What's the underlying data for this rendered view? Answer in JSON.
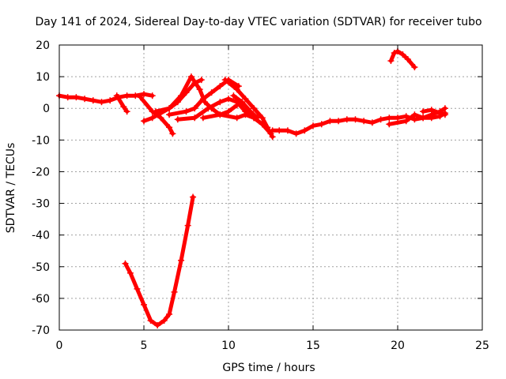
{
  "chart_data": {
    "type": "scatter",
    "title": "Day 141 of 2024, Sidereal Day-to-day VTEC variation (SDTVAR) for receiver tubo",
    "xlabel": "GPS time / hours",
    "ylabel": "SDTVAR / TECUs",
    "xlim": [
      0,
      25
    ],
    "ylim": [
      -70,
      20
    ],
    "xticks": [
      0,
      5,
      10,
      15,
      20,
      25
    ],
    "yticks": [
      -70,
      -60,
      -50,
      -40,
      -30,
      -20,
      -10,
      0,
      10,
      20
    ],
    "grid": true,
    "color": "#ff0000",
    "series": [
      {
        "name": "main",
        "points": [
          [
            0,
            4
          ],
          [
            0.5,
            3.5
          ],
          [
            1,
            3.5
          ],
          [
            1.5,
            3
          ],
          [
            2,
            2.5
          ],
          [
            2.5,
            2
          ],
          [
            3,
            2.5
          ],
          [
            3.5,
            3.5
          ],
          [
            4,
            4
          ],
          [
            4.5,
            4
          ],
          [
            5,
            4.5
          ],
          [
            5.5,
            4
          ]
        ]
      },
      {
        "name": "a",
        "points": [
          [
            3.4,
            4
          ],
          [
            3.8,
            0.5
          ],
          [
            4,
            -1
          ]
        ]
      },
      {
        "name": "b",
        "points": [
          [
            4.8,
            3.5
          ],
          [
            5.5,
            -1
          ],
          [
            6,
            -3
          ],
          [
            6.5,
            -6
          ],
          [
            6.7,
            -8
          ]
        ]
      },
      {
        "name": "c",
        "points": [
          [
            5,
            -4
          ],
          [
            5.5,
            -3
          ],
          [
            6.5,
            0
          ],
          [
            7.2,
            4
          ],
          [
            7.8,
            10
          ],
          [
            8.3,
            6
          ],
          [
            8.6,
            2
          ],
          [
            9,
            0
          ],
          [
            9.5,
            -2
          ],
          [
            10,
            -1
          ],
          [
            10.5,
            1
          ]
        ]
      },
      {
        "name": "d",
        "points": [
          [
            5.7,
            -1
          ],
          [
            6.5,
            0
          ],
          [
            7,
            2
          ],
          [
            7.5,
            5
          ],
          [
            8,
            8
          ],
          [
            8.4,
            9
          ]
        ]
      },
      {
        "name": "e",
        "points": [
          [
            6.5,
            -2
          ],
          [
            7.5,
            -1
          ],
          [
            8,
            0
          ],
          [
            8.5,
            3
          ],
          [
            9,
            5
          ],
          [
            9.5,
            7
          ],
          [
            10,
            9
          ],
          [
            10.6,
            7
          ]
        ]
      },
      {
        "name": "f",
        "points": [
          [
            7,
            -3.5
          ],
          [
            8,
            -3
          ],
          [
            8.8,
            0
          ],
          [
            9.5,
            2
          ],
          [
            10,
            3
          ],
          [
            10.5,
            2
          ],
          [
            11,
            -1
          ],
          [
            11.5,
            -3
          ],
          [
            12,
            -5
          ]
        ]
      },
      {
        "name": "g",
        "points": [
          [
            8.5,
            -3
          ],
          [
            9.5,
            -2
          ],
          [
            10.5,
            -3
          ],
          [
            11,
            -2
          ],
          [
            11.5,
            -3
          ],
          [
            12,
            -5
          ],
          [
            12.5,
            -8
          ]
        ]
      },
      {
        "name": "h",
        "points": [
          [
            9.8,
            9
          ],
          [
            10.5,
            6
          ],
          [
            11,
            3
          ],
          [
            11.5,
            0
          ],
          [
            12,
            -3
          ],
          [
            12.3,
            -6
          ],
          [
            12.6,
            -9
          ]
        ]
      },
      {
        "name": "k",
        "points": [
          [
            10.3,
            4
          ],
          [
            10.8,
            2
          ],
          [
            11.3,
            -1
          ],
          [
            11.7,
            -3
          ]
        ]
      },
      {
        "name": "tail",
        "points": [
          [
            12.6,
            -7
          ],
          [
            13,
            -7
          ],
          [
            13.5,
            -7
          ],
          [
            14,
            -8
          ],
          [
            14.5,
            -7
          ],
          [
            15,
            -5.5
          ],
          [
            15.5,
            -5
          ],
          [
            16,
            -4
          ],
          [
            16.5,
            -4
          ],
          [
            17,
            -3.5
          ],
          [
            17.5,
            -3.5
          ],
          [
            18,
            -4
          ],
          [
            18.5,
            -4.5
          ],
          [
            19,
            -3.5
          ],
          [
            19.5,
            -3
          ],
          [
            20,
            -3
          ],
          [
            20.5,
            -2.5
          ],
          [
            21,
            -3.5
          ],
          [
            21.5,
            -3
          ],
          [
            22,
            -3
          ],
          [
            22.5,
            -2.5
          ],
          [
            22.8,
            -1.5
          ]
        ]
      },
      {
        "name": "tail2",
        "points": [
          [
            19.5,
            -5
          ],
          [
            20.5,
            -4
          ],
          [
            21,
            -2
          ],
          [
            21.5,
            -3
          ],
          [
            22,
            -2
          ],
          [
            22.5,
            -1
          ],
          [
            22.8,
            0
          ]
        ]
      },
      {
        "name": "tail3",
        "points": [
          [
            21.5,
            -1
          ],
          [
            22,
            -0.5
          ],
          [
            22.5,
            -1.5
          ],
          [
            22.8,
            -2
          ]
        ]
      },
      {
        "name": "top",
        "points": [
          [
            19.6,
            15
          ],
          [
            19.8,
            17.5
          ],
          [
            20,
            18
          ],
          [
            20.3,
            17
          ],
          [
            20.6,
            15.5
          ],
          [
            21,
            13
          ]
        ]
      },
      {
        "name": "dip",
        "points": [
          [
            3.9,
            -49
          ],
          [
            4.2,
            -52
          ],
          [
            4.6,
            -57
          ],
          [
            5,
            -62
          ],
          [
            5.4,
            -67
          ],
          [
            5.8,
            -68.5
          ],
          [
            6.2,
            -67
          ],
          [
            6.5,
            -65
          ],
          [
            6.8,
            -58
          ],
          [
            7.2,
            -48
          ],
          [
            7.6,
            -37
          ],
          [
            7.9,
            -28
          ]
        ]
      }
    ]
  }
}
